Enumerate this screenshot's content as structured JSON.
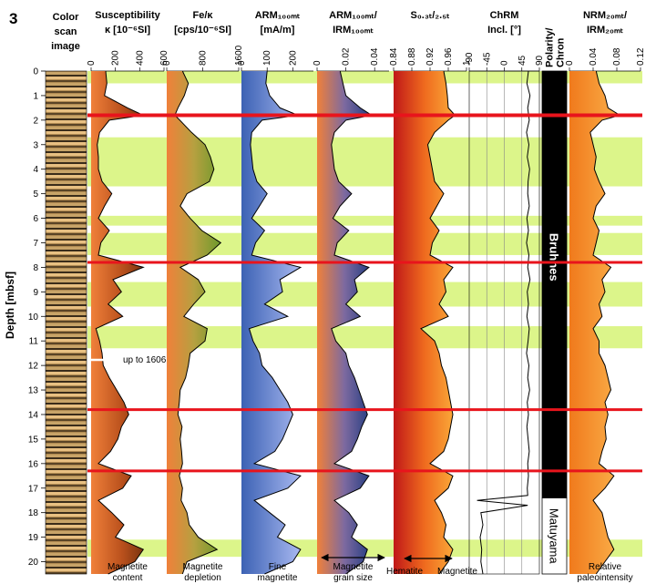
{
  "figure": {
    "number": "3",
    "core_image_header": [
      "Color",
      "scan",
      "image"
    ],
    "depth_axis_label": "Depth [mbsf]",
    "depth_ticks": [
      0,
      1,
      2,
      3,
      4,
      5,
      6,
      7,
      8,
      9,
      10,
      11,
      12,
      13,
      14,
      15,
      16,
      17,
      18,
      19,
      20
    ],
    "annotation_up_to": "up to 1606",
    "polarity_labels": {
      "bruhnes": "Bruhnes",
      "matuyama": "Matuyama"
    }
  },
  "colors": {
    "highlight_band": "#dcf58a",
    "red_line": "#e8141c",
    "susceptibility_fill": "#c0541c",
    "fe_fill": "#8aa83a",
    "arm_fill": "#6e86d8",
    "ratio_fill": "#2b3f86",
    "s_ratio_fill": "#f7902e",
    "nrm_fill": "#f7902e",
    "polarity_black": "#000000"
  },
  "chart_data": {
    "type": "line",
    "y_axis": {
      "label": "Depth [mbsf]",
      "range": [
        0,
        20.5
      ],
      "inverted": true
    },
    "highlight_bands": [
      [
        0,
        0.5
      ],
      [
        2.7,
        4.7
      ],
      [
        5.9,
        6.3
      ],
      [
        6.6,
        7.5
      ],
      [
        8.6,
        9.6
      ],
      [
        10.4,
        11.3
      ],
      [
        19.1,
        19.8
      ]
    ],
    "red_lines": [
      1.8,
      7.8,
      13.8,
      16.3
    ],
    "polarity": [
      {
        "label": "Bruhnes",
        "from": 0,
        "to": 17.4,
        "color": "black"
      },
      {
        "label": "Matuyama",
        "from": 17.4,
        "to": 20.5,
        "color": "white"
      }
    ],
    "panels": [
      {
        "id": "susc",
        "title": "Susceptibility",
        "unit": "κ [10⁻⁶SI]",
        "ticks": [
          "0",
          "200",
          "400",
          "600"
        ],
        "xlim": [
          0,
          600
        ],
        "caption": [
          "Magnetite",
          "content"
        ],
        "depths": [
          0,
          0.5,
          1,
          1.5,
          1.8,
          2,
          2.5,
          3,
          3.5,
          4,
          4.5,
          5,
          5.5,
          6,
          6.5,
          7,
          7.5,
          8,
          8.5,
          9,
          9.5,
          10,
          10.5,
          11,
          11.5,
          12,
          12.5,
          13,
          13.5,
          14,
          14.5,
          15,
          15.5,
          16,
          16.5,
          17,
          17.5,
          18,
          18.5,
          19,
          19.5,
          20,
          20.5
        ],
        "values": [
          120,
          130,
          110,
          300,
          430,
          150,
          70,
          50,
          60,
          60,
          90,
          170,
          110,
          60,
          150,
          80,
          60,
          430,
          180,
          250,
          140,
          260,
          40,
          70,
          90,
          100,
          150,
          210,
          270,
          310,
          250,
          220,
          160,
          60,
          330,
          260,
          60,
          170,
          270,
          200,
          430,
          360,
          140
        ]
      },
      {
        "id": "fe",
        "title": "Fe/κ",
        "unit": "[cps/10⁻⁶SI]",
        "ticks": [
          "0",
          "800",
          "1600"
        ],
        "xlim": [
          0,
          1600
        ],
        "caption": [
          "Magnetite",
          "depletion"
        ],
        "depths": [
          0,
          0.5,
          1,
          1.5,
          1.8,
          2,
          2.5,
          3,
          3.5,
          4,
          4.5,
          5,
          5.5,
          6,
          6.5,
          7,
          7.5,
          8,
          8.5,
          9,
          9.5,
          10,
          10.5,
          11,
          11.5,
          12,
          12.5,
          13,
          13.5,
          14,
          14.5,
          15,
          15.5,
          16,
          16.5,
          17,
          17.5,
          18,
          18.5,
          19,
          19.5,
          20,
          20.5
        ],
        "values": [
          350,
          480,
          390,
          250,
          180,
          290,
          550,
          850,
          970,
          1050,
          950,
          450,
          300,
          520,
          780,
          1200,
          900,
          300,
          700,
          850,
          600,
          380,
          900,
          850,
          520,
          480,
          420,
          300,
          280,
          250,
          340,
          300,
          330,
          350,
          280,
          350,
          320,
          450,
          500,
          700,
          1120,
          450,
          350
        ]
      },
      {
        "id": "arm",
        "title": "ARM₁₀₀ₘₜ",
        "unit": "[mA/m]",
        "ticks": [
          "0",
          "100",
          "200"
        ],
        "xlim": [
          0,
          280
        ],
        "caption": [
          "Fine",
          "magnetite"
        ],
        "depths": [
          0,
          0.5,
          1,
          1.5,
          1.8,
          2,
          2.5,
          3,
          3.5,
          4,
          4.5,
          5,
          5.5,
          6,
          6.5,
          7,
          7.5,
          8,
          8.5,
          9,
          9.5,
          10,
          10.5,
          11,
          11.5,
          12,
          12.5,
          13,
          13.5,
          14,
          14.5,
          15,
          15.5,
          16,
          16.5,
          17,
          17.5,
          18,
          18.5,
          19,
          19.5,
          20,
          20.5
        ],
        "values": [
          100,
          95,
          110,
          150,
          220,
          80,
          40,
          35,
          40,
          45,
          60,
          100,
          70,
          40,
          90,
          55,
          40,
          230,
          150,
          160,
          90,
          180,
          30,
          45,
          70,
          80,
          120,
          150,
          180,
          200,
          180,
          160,
          130,
          50,
          230,
          180,
          50,
          110,
          170,
          140,
          230,
          200,
          90
        ]
      },
      {
        "id": "armirm",
        "title": "ARM₁₀₀ₘₜ/",
        "subtitle": "IRM₁₀₀ₘₜ",
        "ticks": [
          "0",
          "0.02",
          "0.04"
        ],
        "xlim": [
          0,
          0.05
        ],
        "caption": [
          "Magnetite",
          "grain size"
        ],
        "double_arrow": true,
        "depths": [
          0,
          0.5,
          1,
          1.5,
          1.8,
          2,
          2.5,
          3,
          3.5,
          4,
          4.5,
          5,
          5.5,
          6,
          6.5,
          7,
          7.5,
          8,
          8.5,
          9,
          9.5,
          10,
          10.5,
          11,
          11.5,
          12,
          12.5,
          13,
          13.5,
          14,
          14.5,
          15,
          15.5,
          16,
          16.5,
          17,
          17.5,
          18,
          18.5,
          19,
          19.5,
          20,
          20.5
        ],
        "values": [
          0.016,
          0.018,
          0.02,
          0.03,
          0.038,
          0.02,
          0.012,
          0.01,
          0.011,
          0.012,
          0.015,
          0.024,
          0.016,
          0.011,
          0.022,
          0.014,
          0.012,
          0.036,
          0.026,
          0.028,
          0.02,
          0.03,
          0.01,
          0.013,
          0.02,
          0.022,
          0.026,
          0.029,
          0.032,
          0.035,
          0.031,
          0.028,
          0.024,
          0.012,
          0.036,
          0.03,
          0.012,
          0.022,
          0.028,
          0.024,
          0.035,
          0.032,
          0.02
        ]
      },
      {
        "id": "sratio",
        "title": "S₀.₃ₜ/₂.₅ₜ",
        "ticks": [
          "0.84",
          "0.88",
          "0.92",
          "0.96",
          "1"
        ],
        "xlim": [
          0.84,
          1.0
        ],
        "caption_left": "Hematite",
        "caption_right": "Magnetite",
        "double_arrow": true,
        "depths": [
          0,
          0.5,
          1,
          1.5,
          1.8,
          2,
          2.5,
          3,
          3.5,
          4,
          4.5,
          5,
          5.5,
          6,
          6.5,
          7,
          7.5,
          8,
          8.5,
          9,
          9.5,
          10,
          10.5,
          11,
          11.5,
          12,
          12.5,
          13,
          13.5,
          14,
          14.5,
          15,
          15.5,
          16,
          16.5,
          17,
          17.5,
          18,
          18.5,
          19,
          19.5,
          20,
          20.5
        ],
        "values": [
          0.95,
          0.955,
          0.958,
          0.96,
          0.975,
          0.96,
          0.93,
          0.915,
          0.92,
          0.925,
          0.93,
          0.95,
          0.935,
          0.92,
          0.94,
          0.925,
          0.92,
          0.97,
          0.95,
          0.955,
          0.94,
          0.96,
          0.9,
          0.93,
          0.94,
          0.945,
          0.955,
          0.96,
          0.965,
          0.97,
          0.965,
          0.96,
          0.95,
          0.92,
          0.97,
          0.96,
          0.93,
          0.945,
          0.955,
          0.95,
          0.97,
          0.96,
          0.94
        ]
      },
      {
        "id": "chrm",
        "title": "ChRM",
        "unit": "Incl. [°]",
        "ticks": [
          "-90",
          "-45",
          "0",
          "45",
          "90"
        ],
        "xlim": [
          -90,
          90
        ],
        "depths": [
          0,
          0.5,
          1,
          1.5,
          2,
          2.5,
          3,
          3.5,
          4,
          4.5,
          5,
          5.5,
          6,
          6.5,
          7,
          7.5,
          8,
          8.5,
          9,
          9.5,
          10,
          10.5,
          11,
          11.5,
          12,
          12.5,
          13,
          13.5,
          14,
          14.5,
          15,
          15.5,
          16,
          16.5,
          17,
          17.3,
          17.5,
          17.7,
          18,
          18.5,
          19,
          19.5,
          20,
          20.5
        ],
        "values": [
          62,
          58,
          66,
          60,
          64,
          57,
          63,
          59,
          65,
          61,
          60,
          64,
          58,
          62,
          57,
          63,
          60,
          66,
          59,
          62,
          58,
          64,
          61,
          57,
          63,
          60,
          65,
          59,
          62,
          58,
          61,
          64,
          60,
          62,
          59,
          60,
          -70,
          60,
          -60,
          -55,
          -62,
          -58,
          -60,
          -55
        ]
      },
      {
        "id": "polarity",
        "title": "Polarity/",
        "subtitle": "Chron"
      },
      {
        "id": "nrm",
        "title": "NRM₂₀ₘₜ/",
        "subtitle": "IRM₂₀ₘₜ",
        "ticks": [
          "0",
          "0.04",
          "0.08",
          "0.12"
        ],
        "xlim": [
          0,
          0.12
        ],
        "caption": [
          "Relative",
          "paleointensity"
        ],
        "depths": [
          0,
          0.5,
          1,
          1.5,
          1.8,
          2,
          2.5,
          3,
          3.5,
          4,
          4.5,
          5,
          5.5,
          6,
          6.5,
          7,
          7.5,
          8,
          8.5,
          9,
          9.5,
          10,
          10.5,
          11,
          11.5,
          12,
          12.5,
          13,
          13.5,
          14,
          14.5,
          15,
          15.5,
          16,
          16.5,
          17,
          17.5,
          18,
          18.5,
          19,
          19.5,
          20,
          20.5
        ],
        "values": [
          0.045,
          0.05,
          0.06,
          0.065,
          0.085,
          0.055,
          0.035,
          0.04,
          0.045,
          0.042,
          0.05,
          0.06,
          0.045,
          0.04,
          0.05,
          0.045,
          0.04,
          0.07,
          0.055,
          0.06,
          0.05,
          0.055,
          0.04,
          0.05,
          0.05,
          0.06,
          0.065,
          0.07,
          0.06,
          0.065,
          0.06,
          0.062,
          0.055,
          0.05,
          0.075,
          0.06,
          0.04,
          0.055,
          0.06,
          0.065,
          0.075,
          0.06,
          0.045
        ]
      }
    ]
  }
}
